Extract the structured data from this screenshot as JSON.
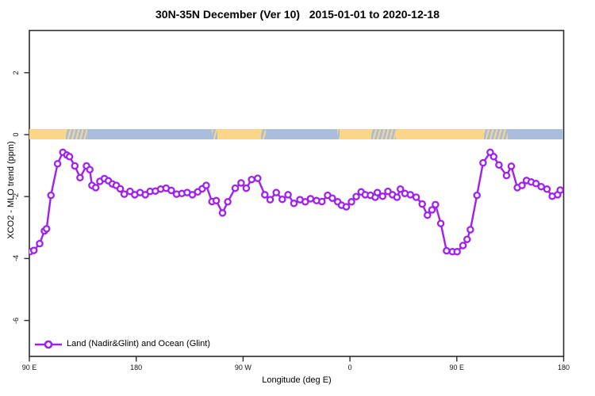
{
  "header": {
    "title": "30N-35N December (Ver 10)   2015-01-01 to 2020-12-18"
  },
  "chart_data": {
    "type": "line",
    "title": "30N-35N December (Ver 10)   2015-01-01 to 2020-12-18",
    "xlabel": "Longitude (deg E)",
    "ylabel": "XCO2 - MLO trend (ppm)",
    "xlim": [
      90,
      540
    ],
    "ylim": [
      -7.2,
      3.4
    ],
    "grid": false,
    "legend_position": "bottom-left",
    "legend": {
      "label": "Land (Nadir&Glint) and Ocean (Glint)",
      "marker": "open-circle-line"
    },
    "line_color": "#A020F0",
    "marker_fill": "#ffffff",
    "axis_color": "#2b2b2b",
    "x_ticks": [
      {
        "deg": 90,
        "label": "90 E"
      },
      {
        "deg": 180,
        "label": "180"
      },
      {
        "deg": 270,
        "label": "90 W"
      },
      {
        "deg": 360,
        "label": "0"
      },
      {
        "deg": 450,
        "label": "90 E"
      },
      {
        "deg": 540,
        "label": "180"
      }
    ],
    "y_ticks": [
      {
        "v": 2,
        "label": "2"
      },
      {
        "v": 0,
        "label": "0"
      },
      {
        "v": -2,
        "label": "-2"
      },
      {
        "v": -4,
        "label": "-4"
      },
      {
        "v": -6,
        "label": "-6"
      }
    ],
    "surface_band": {
      "land_color": "#FBD687",
      "ocean_color": "#A9BEDC",
      "value": 0,
      "segments": [
        {
          "from": 90,
          "to": 120.5,
          "type": "land"
        },
        {
          "from": 120.5,
          "to": 139,
          "type": "coast"
        },
        {
          "from": 139,
          "to": 244,
          "type": "ocean"
        },
        {
          "from": 244,
          "to": 248.5,
          "type": "coast"
        },
        {
          "from": 248.5,
          "to": 285,
          "type": "land"
        },
        {
          "from": 285,
          "to": 289,
          "type": "coast"
        },
        {
          "from": 289,
          "to": 349,
          "type": "ocean"
        },
        {
          "from": 349,
          "to": 351.5,
          "type": "coast"
        },
        {
          "from": 351.5,
          "to": 378,
          "type": "land"
        },
        {
          "from": 378,
          "to": 399,
          "type": "coast"
        },
        {
          "from": 399,
          "to": 473,
          "type": "land"
        },
        {
          "from": 473,
          "to": 493,
          "type": "coast"
        },
        {
          "from": 493,
          "to": 540,
          "type": "ocean"
        }
      ]
    },
    "series": [
      {
        "name": "Land (Nadir&Glint) and Ocean (Glint)",
        "points": [
          [
            87.5,
            -3.85
          ],
          [
            90.5,
            -3.78
          ],
          [
            93.8,
            -3.74
          ],
          [
            98.7,
            -3.52
          ],
          [
            102.7,
            -3.11
          ],
          [
            104.5,
            -3.04
          ],
          [
            108.2,
            -1.96
          ],
          [
            113.8,
            -0.94
          ],
          [
            118.2,
            -0.57
          ],
          [
            121.6,
            -0.66
          ],
          [
            123.8,
            -0.71
          ],
          [
            128.3,
            -1.01
          ],
          [
            132.7,
            -1.39
          ],
          [
            138.1,
            -1.01
          ],
          [
            140.9,
            -1.13
          ],
          [
            142.7,
            -1.64
          ],
          [
            145.9,
            -1.71
          ],
          [
            149.4,
            -1.51
          ],
          [
            153.2,
            -1.42
          ],
          [
            156.6,
            -1.49
          ],
          [
            159.9,
            -1.59
          ],
          [
            163.2,
            -1.64
          ],
          [
            166.6,
            -1.75
          ],
          [
            169.9,
            -1.92
          ],
          [
            174.8,
            -1.83
          ],
          [
            178.8,
            -1.94
          ],
          [
            183.3,
            -1.87
          ],
          [
            187.7,
            -1.94
          ],
          [
            191.7,
            -1.83
          ],
          [
            196.2,
            -1.82
          ],
          [
            200.6,
            -1.76
          ],
          [
            205.1,
            -1.73
          ],
          [
            209.5,
            -1.8
          ],
          [
            214.0,
            -1.92
          ],
          [
            218.4,
            -1.9
          ],
          [
            222.9,
            -1.87
          ],
          [
            227.3,
            -1.94
          ],
          [
            231.8,
            -1.85
          ],
          [
            235.6,
            -1.75
          ],
          [
            238.9,
            -1.64
          ],
          [
            243.8,
            -2.16
          ],
          [
            247.4,
            -2.13
          ],
          [
            252.7,
            -2.53
          ],
          [
            257.1,
            -2.17
          ],
          [
            263.4,
            -1.73
          ],
          [
            268.3,
            -1.56
          ],
          [
            272.7,
            -1.73
          ],
          [
            277.2,
            -1.45
          ],
          [
            282.3,
            -1.41
          ],
          [
            288.3,
            -1.94
          ],
          [
            292.8,
            -2.1
          ],
          [
            297.9,
            -1.87
          ],
          [
            303.0,
            -2.09
          ],
          [
            307.9,
            -1.94
          ],
          [
            312.8,
            -2.22
          ],
          [
            317.9,
            -2.1
          ],
          [
            322.4,
            -2.17
          ],
          [
            326.8,
            -2.07
          ],
          [
            331.9,
            -2.13
          ],
          [
            336.4,
            -2.16
          ],
          [
            341.2,
            -1.96
          ],
          [
            345.2,
            -2.05
          ],
          [
            349.7,
            -2.17
          ],
          [
            352.9,
            -2.28
          ],
          [
            356.9,
            -2.33
          ],
          [
            361.3,
            -2.17
          ],
          [
            365.3,
            -2.0
          ],
          [
            369.4,
            -1.85
          ],
          [
            372.9,
            -1.94
          ],
          [
            377.3,
            -1.96
          ],
          [
            381.3,
            -2.02
          ],
          [
            383.1,
            -1.87
          ],
          [
            387.5,
            -1.99
          ],
          [
            392.0,
            -1.83
          ],
          [
            395.8,
            -1.94
          ],
          [
            399.6,
            -2.02
          ],
          [
            402.5,
            -1.76
          ],
          [
            406.3,
            -1.9
          ],
          [
            410.9,
            -1.94
          ],
          [
            415.8,
            -2.02
          ],
          [
            420.9,
            -2.24
          ],
          [
            425.3,
            -2.6
          ],
          [
            429.1,
            -2.43
          ],
          [
            432.0,
            -2.26
          ],
          [
            436.5,
            -2.87
          ],
          [
            441.4,
            -3.75
          ],
          [
            446.3,
            -3.78
          ],
          [
            450.3,
            -3.78
          ],
          [
            455.2,
            -3.58
          ],
          [
            458.7,
            -3.38
          ],
          [
            461.4,
            -3.07
          ],
          [
            467.0,
            -1.96
          ],
          [
            472.1,
            -0.91
          ],
          [
            478.1,
            -0.57
          ],
          [
            481.1,
            -0.71
          ],
          [
            485.5,
            -0.98
          ],
          [
            491.9,
            -1.32
          ],
          [
            495.9,
            -1.02
          ],
          [
            501.0,
            -1.71
          ],
          [
            504.9,
            -1.64
          ],
          [
            508.7,
            -1.48
          ],
          [
            512.7,
            -1.53
          ],
          [
            516.7,
            -1.58
          ],
          [
            521.1,
            -1.68
          ],
          [
            526.0,
            -1.76
          ],
          [
            530.4,
            -1.99
          ],
          [
            534.9,
            -1.94
          ],
          [
            537.1,
            -1.79
          ]
        ]
      }
    ]
  }
}
